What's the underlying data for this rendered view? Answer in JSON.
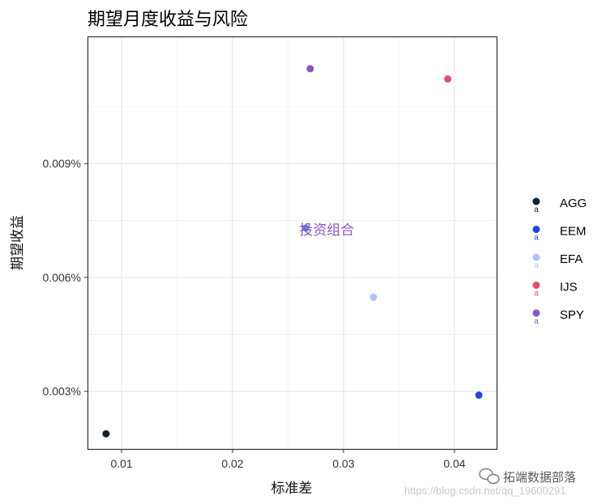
{
  "chart_data": {
    "type": "scatter",
    "title": "期望月度收益与风险",
    "xlabel": "标准差",
    "ylabel": "期望收益",
    "xlim": [
      0.007,
      0.0438
    ],
    "ylim": [
      0.00148,
      0.01233
    ],
    "xticks": [
      0.01,
      0.02,
      0.03,
      0.04
    ],
    "xtick_labels": [
      "0.01",
      "0.02",
      "0.03",
      "0.04"
    ],
    "yticks": [
      0.003,
      0.006,
      0.009
    ],
    "ytick_labels": [
      "0.003%",
      "0.006%",
      "0.009%"
    ],
    "grid": true,
    "legend_position": "right",
    "points": [
      {
        "name": "AGG",
        "x": 0.0086,
        "y": 0.00188,
        "color": "#0b2233"
      },
      {
        "name": "EEM",
        "x": 0.0422,
        "y": 0.0029,
        "color": "#2346d8"
      },
      {
        "name": "EFA",
        "x": 0.0327,
        "y": 0.00548,
        "color": "#aec4f5"
      },
      {
        "name": "IJS",
        "x": 0.0394,
        "y": 0.01123,
        "color": "#e2506a"
      },
      {
        "name": "SPY",
        "x": 0.027,
        "y": 0.0115,
        "color": "#8a57c4"
      }
    ],
    "annotation": {
      "text": "投资组合",
      "x": 0.0266,
      "y": 0.0073,
      "color": "#8a57c4",
      "point_color": "#6a7fd0"
    }
  },
  "watermark": {
    "text": "拓端数据部落",
    "url": "https://blog.csdn.net/qq_19600291"
  },
  "icons": {
    "watermark": "wechat-icon"
  }
}
